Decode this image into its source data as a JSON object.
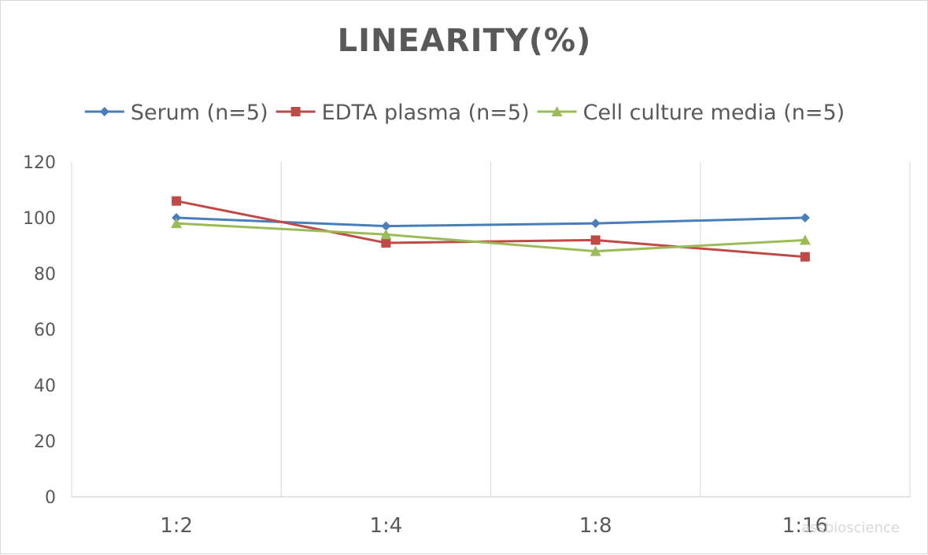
{
  "chart_data": {
    "type": "line",
    "title": "LINEARITY(%)",
    "categories": [
      "1:2",
      "1:4",
      "1:8",
      "1:16"
    ],
    "ylim": [
      0,
      120
    ],
    "yticks": [
      0,
      20,
      40,
      60,
      80,
      100,
      120
    ],
    "grid": "vertical",
    "legend_position": "top",
    "series": [
      {
        "name": "Serum (n=5)",
        "color": "#4a7ebb",
        "marker": "diamond",
        "values": [
          100,
          97,
          98,
          100
        ]
      },
      {
        "name": "EDTA plasma (n=5)",
        "color": "#be4b48",
        "marker": "square",
        "values": [
          106,
          91,
          92,
          86
        ]
      },
      {
        "name": "Cell culture media (n=5)",
        "color": "#9bbb59",
        "marker": "triangle",
        "values": [
          98,
          94,
          88,
          92
        ]
      }
    ]
  },
  "watermark": "assbioscience"
}
